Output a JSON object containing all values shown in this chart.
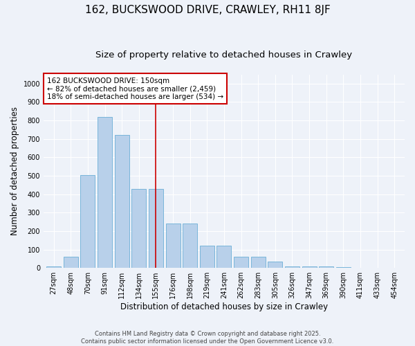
{
  "title1": "162, BUCKSWOOD DRIVE, CRAWLEY, RH11 8JF",
  "title2": "Size of property relative to detached houses in Crawley",
  "xlabel": "Distribution of detached houses by size in Crawley",
  "ylabel": "Number of detached properties",
  "footer": "Contains HM Land Registry data © Crown copyright and database right 2025.\nContains public sector information licensed under the Open Government Licence v3.0.",
  "bar_labels": [
    "27sqm",
    "48sqm",
    "70sqm",
    "91sqm",
    "112sqm",
    "134sqm",
    "155sqm",
    "176sqm",
    "198sqm",
    "219sqm",
    "241sqm",
    "262sqm",
    "283sqm",
    "305sqm",
    "326sqm",
    "347sqm",
    "369sqm",
    "390sqm",
    "411sqm",
    "433sqm",
    "454sqm"
  ],
  "bar_values": [
    10,
    60,
    505,
    820,
    720,
    430,
    430,
    240,
    240,
    120,
    120,
    60,
    60,
    35,
    10,
    10,
    10,
    3,
    0,
    0,
    0
  ],
  "bar_color": "#b8d0ea",
  "bar_edge_color": "#6aaed6",
  "vline_x": 6,
  "vline_color": "#cc0000",
  "annotation_title": "162 BUCKSWOOD DRIVE: 150sqm",
  "annotation_line1": "← 82% of detached houses are smaller (2,459)",
  "annotation_line2": "18% of semi-detached houses are larger (534) →",
  "ylim": [
    0,
    1050
  ],
  "yticks": [
    0,
    100,
    200,
    300,
    400,
    500,
    600,
    700,
    800,
    900,
    1000
  ],
  "bg_color": "#eef2f9",
  "grid_color": "#ffffff",
  "title_fontsize": 11,
  "subtitle_fontsize": 9.5,
  "axis_label_fontsize": 8.5,
  "tick_fontsize": 7,
  "footer_fontsize": 6,
  "annotation_fontsize": 7.5
}
